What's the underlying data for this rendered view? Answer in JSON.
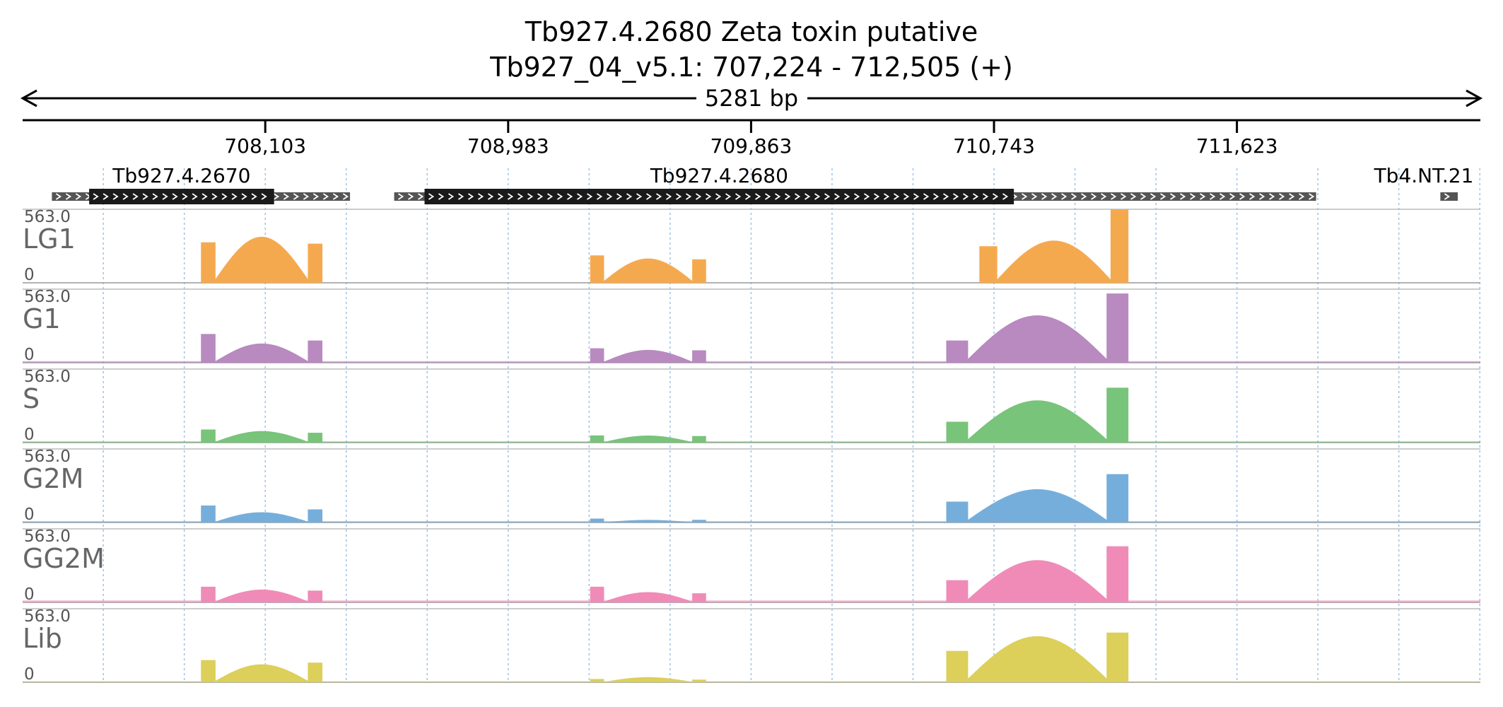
{
  "chart_data": {
    "type": "area",
    "title_line1": "Tb927.4.2680  Zeta toxin  putative",
    "title_line2": "Tb927_04_v5.1: 707,224 - 712,505 (+)",
    "span_label": "5281 bp",
    "xlim": [
      707224,
      712505
    ],
    "x_ticks": [
      708103,
      708983,
      709863,
      710743,
      711623
    ],
    "x_tick_labels": [
      "708,103",
      "708,983",
      "709,863",
      "710,743",
      "711,623"
    ],
    "grid": true,
    "genes": [
      {
        "name": "Tb927.4.2670",
        "start": 707330,
        "end": 708410,
        "cds_start": 707465,
        "cds_end": 708135,
        "strand": "+"
      },
      {
        "name": "Tb927.4.2680",
        "start": 708570,
        "end": 711910,
        "cds_start": 708680,
        "cds_end": 710815,
        "strand": "+"
      },
      {
        "name": "Tb4.NT.21",
        "start": 712360,
        "end": 712590,
        "cds_start": null,
        "cds_end": null,
        "strand": "+"
      }
    ],
    "y_max_label": "563.0",
    "y_min_label": "0",
    "ylim": [
      0,
      563
    ],
    "series": [
      {
        "name": "LG1",
        "color": "#f5a94f",
        "profile": [
          [
            707870,
            708310,
            310,
            360,
            300
          ],
          [
            709280,
            709700,
            210,
            190,
            180
          ],
          [
            710690,
            711230,
            280,
            330,
            600
          ]
        ],
        "background": 0
      },
      {
        "name": "G1",
        "color": "#b88ac0",
        "profile": [
          [
            707870,
            708310,
            220,
            150,
            170
          ],
          [
            709280,
            709700,
            110,
            100,
            95
          ],
          [
            710570,
            711230,
            170,
            370,
            530
          ]
        ],
        "background": 12
      },
      {
        "name": "S",
        "color": "#78c47a",
        "profile": [
          [
            707870,
            708310,
            100,
            90,
            75
          ],
          [
            709280,
            709700,
            55,
            55,
            50
          ],
          [
            710570,
            711230,
            160,
            330,
            420
          ]
        ],
        "background": 10
      },
      {
        "name": "G2M",
        "color": "#76aedb",
        "profile": [
          [
            707870,
            708310,
            130,
            80,
            100
          ],
          [
            709280,
            709700,
            30,
            20,
            20
          ],
          [
            710570,
            711230,
            160,
            260,
            370
          ]
        ],
        "background": 10
      },
      {
        "name": "GG2M",
        "color": "#f08bb8",
        "profile": [
          [
            707870,
            708310,
            120,
            100,
            90
          ],
          [
            709280,
            709700,
            120,
            80,
            70
          ],
          [
            710570,
            711230,
            170,
            330,
            430
          ]
        ],
        "background": 15
      },
      {
        "name": "Lib",
        "color": "#dccf5a",
        "profile": [
          [
            707870,
            708310,
            170,
            140,
            150
          ],
          [
            709280,
            709700,
            25,
            40,
            20
          ],
          [
            710570,
            711230,
            240,
            360,
            380
          ]
        ],
        "background": 8
      }
    ]
  }
}
